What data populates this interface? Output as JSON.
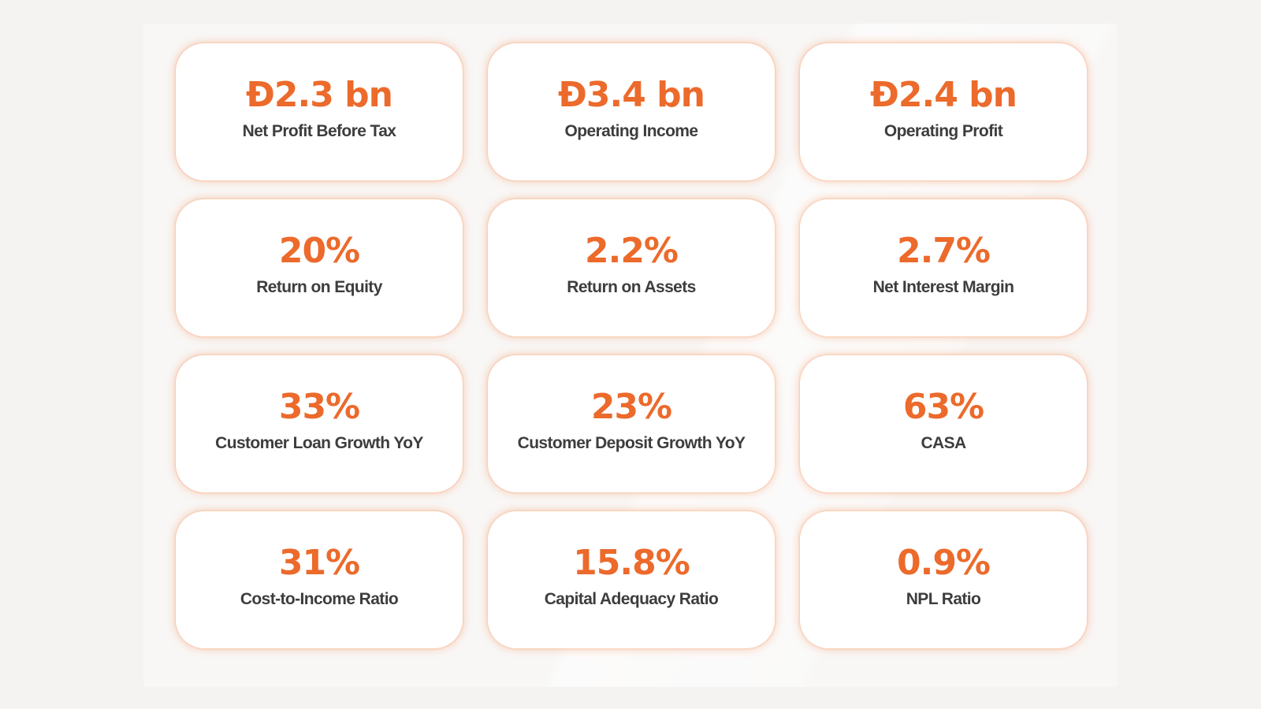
{
  "metrics": [
    {
      "value": "Đ2.3 bn",
      "label": "Net Profit Before Tax"
    },
    {
      "value": "Đ3.4 bn",
      "label": "Operating Income"
    },
    {
      "value": "Đ2.4 bn",
      "label": "Operating Profit"
    },
    {
      "value": "20%",
      "label": "Return on Equity"
    },
    {
      "value": "2.2%",
      "label": "Return on Assets"
    },
    {
      "value": "2.7%",
      "label": "Net Interest Margin"
    },
    {
      "value": "33%",
      "label": "Customer Loan Growth YoY"
    },
    {
      "value": "23%",
      "label": "Customer Deposit Growth YoY"
    },
    {
      "value": "63%",
      "label": "CASA"
    },
    {
      "value": "31%",
      "label": "Cost-to-Income Ratio"
    },
    {
      "value": "15.8%",
      "label": "Capital Adequacy Ratio"
    },
    {
      "value": "0.9%",
      "label": "NPL Ratio"
    }
  ],
  "colors": {
    "accent": "#ec6a2b",
    "label": "#3d3d3d",
    "card": "#ffffff",
    "background": "#f4f3f2"
  }
}
